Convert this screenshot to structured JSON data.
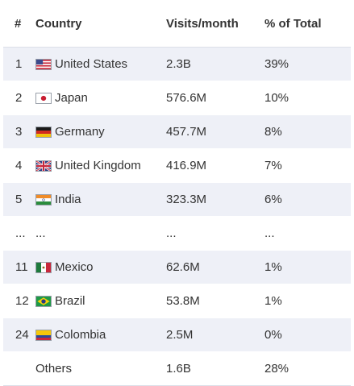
{
  "columns": {
    "rank": "#",
    "country": "Country",
    "visits": "Visits/month",
    "percent": "% of Total"
  },
  "rows": [
    {
      "rank": "1",
      "country": "United States",
      "flag": "us-flag-icon",
      "visits": "2.3B",
      "percent": "39%"
    },
    {
      "rank": "2",
      "country": "Japan",
      "flag": "japan-flag-icon",
      "visits": "576.6M",
      "percent": "10%"
    },
    {
      "rank": "3",
      "country": "Germany",
      "flag": "germany-flag-icon",
      "visits": "457.7M",
      "percent": "8%"
    },
    {
      "rank": "4",
      "country": "United Kingdom",
      "flag": "uk-flag-icon",
      "visits": "416.9M",
      "percent": "7%"
    },
    {
      "rank": "5",
      "country": "India",
      "flag": "india-flag-icon",
      "visits": "323.3M",
      "percent": "6%"
    },
    {
      "rank": "...",
      "country": "...",
      "visits": "...",
      "percent": "..."
    },
    {
      "rank": "11",
      "country": "Mexico",
      "flag": "mexico-flag-icon",
      "visits": "62.6M",
      "percent": "1%"
    },
    {
      "rank": "12",
      "country": "Brazil",
      "flag": "brazil-flag-icon",
      "visits": "53.8M",
      "percent": "1%"
    },
    {
      "rank": "24",
      "country": "Colombia",
      "flag": "colombia-flag-icon",
      "visits": "2.5M",
      "percent": "0%"
    },
    {
      "rank": "",
      "country": "Others",
      "visits": "1.6B",
      "percent": "28%"
    }
  ],
  "colors": {
    "row_shade": "#eef0f7",
    "text": "#333333",
    "divider": "#dcdfe8"
  }
}
